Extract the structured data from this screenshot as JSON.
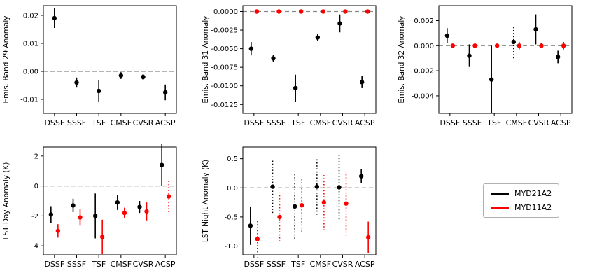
{
  "figure": {
    "background": "#ffffff"
  },
  "legend": {
    "items": [
      {
        "label": "MYD21A2",
        "color": "#000000"
      },
      {
        "label": "MYD11A2",
        "color": "#ff0000"
      }
    ]
  },
  "chart_data": [
    {
      "id": "emis-band-29",
      "type": "scatter",
      "ylabel": "Emis. Band 29 Anomaly",
      "categories": [
        "DSSF",
        "SSSF",
        "TSF",
        "CMSF",
        "CVSR",
        "ACSP"
      ],
      "ylim": [
        -0.015,
        0.0235
      ],
      "yticks": [
        {
          "v": -0.01,
          "label": "-0.01"
        },
        {
          "v": 0.0,
          "label": "0.00"
        },
        {
          "v": 0.01,
          "label": "0.01"
        },
        {
          "v": 0.02,
          "label": "0.02"
        }
      ],
      "zero_line": true,
      "series": [
        {
          "name": "MYD21A2",
          "color": "#000000",
          "dx": 0,
          "points": [
            {
              "y": 0.019,
              "err": 0.0035,
              "style": "solid"
            },
            {
              "y": -0.004,
              "err": 0.0018,
              "style": "solid"
            },
            {
              "y": -0.007,
              "err": 0.004,
              "style": "solid"
            },
            {
              "y": -0.0015,
              "err": 0.0012,
              "style": "solid"
            },
            {
              "y": -0.002,
              "err": 0.001,
              "style": "solid"
            },
            {
              "y": -0.0075,
              "err": 0.0028,
              "style": "solid"
            }
          ]
        }
      ]
    },
    {
      "id": "emis-band-31",
      "type": "scatter",
      "ylabel": "Emis. Band 31 Anomaly",
      "categories": [
        "DSSF",
        "SSSF",
        "TSF",
        "CMSF",
        "CVSR",
        "ACSP"
      ],
      "ylim": [
        -0.0137,
        0.0008
      ],
      "yticks": [
        {
          "v": 0.0,
          "label": "0.0000"
        },
        {
          "v": -0.0025,
          "label": "-0.0025"
        },
        {
          "v": -0.005,
          "label": "-0.0050"
        },
        {
          "v": -0.0075,
          "label": "-0.0075"
        },
        {
          "v": -0.01,
          "label": "-0.0100"
        },
        {
          "v": -0.0125,
          "label": "-0.0125"
        }
      ],
      "zero_line": true,
      "series": [
        {
          "name": "MYD21A2",
          "color": "#000000",
          "dx": -4,
          "points": [
            {
              "y": -0.005,
              "err": 0.0009,
              "style": "solid"
            },
            {
              "y": -0.0063,
              "err": 0.0005,
              "style": "solid"
            },
            {
              "y": -0.0103,
              "err": 0.0018,
              "style": "solid"
            },
            {
              "y": -0.0035,
              "err": 0.0005,
              "style": "solid"
            },
            {
              "y": -0.0016,
              "err": 0.0012,
              "style": "solid"
            },
            {
              "y": -0.0095,
              "err": 0.0008,
              "style": "solid"
            }
          ]
        },
        {
          "name": "MYD11A2",
          "color": "#ff0000",
          "dx": 4,
          "points": [
            {
              "y": 0.0,
              "err": 0.0001,
              "style": "solid"
            },
            {
              "y": 0.0,
              "err": 0.0001,
              "style": "solid"
            },
            {
              "y": 0.0,
              "err": 0.0001,
              "style": "solid"
            },
            {
              "y": 0.0,
              "err": 0.0001,
              "style": "solid"
            },
            {
              "y": 0.0,
              "err": 0.0002,
              "style": "solid"
            },
            {
              "y": 0.0,
              "err": 0.0002,
              "style": "solid"
            }
          ]
        }
      ]
    },
    {
      "id": "emis-band-32",
      "type": "scatter",
      "ylabel": "Emis. Band 32 Anomaly",
      "categories": [
        "DSSF",
        "SSSF",
        "TSF",
        "CMSF",
        "CVSR",
        "ACSP"
      ],
      "ylim": [
        -0.0054,
        0.0032
      ],
      "yticks": [
        {
          "v": 0.002,
          "label": "0.002"
        },
        {
          "v": 0.0,
          "label": "0.000"
        },
        {
          "v": -0.002,
          "label": "-0.002"
        },
        {
          "v": -0.004,
          "label": "-0.004"
        }
      ],
      "zero_line": true,
      "series": [
        {
          "name": "MYD21A2",
          "color": "#000000",
          "dx": -4,
          "points": [
            {
              "y": 0.0008,
              "err": 0.0006,
              "style": "solid"
            },
            {
              "y": -0.0008,
              "err": 0.0009,
              "style": "solid"
            },
            {
              "y": -0.0027,
              "err": 0.0027,
              "style": "solid"
            },
            {
              "y": 0.0003,
              "err": 0.0013,
              "style": "dotted"
            },
            {
              "y": 0.0013,
              "err": 0.0012,
              "style": "solid"
            },
            {
              "y": -0.0009,
              "err": 0.0005,
              "style": "solid"
            }
          ]
        },
        {
          "name": "MYD11A2",
          "color": "#ff0000",
          "dx": 4,
          "points": [
            {
              "y": 0.0,
              "err": 0.0001,
              "style": "solid"
            },
            {
              "y": 0.0,
              "err": 0.0002,
              "style": "solid"
            },
            {
              "y": 0.0,
              "err": 0.0001,
              "style": "solid"
            },
            {
              "y": 0.0,
              "err": 0.0003,
              "style": "solid"
            },
            {
              "y": 0.0,
              "err": 0.0002,
              "style": "solid"
            },
            {
              "y": 0.0,
              "err": 0.0003,
              "style": "solid"
            }
          ]
        }
      ]
    },
    {
      "id": "lst-day",
      "type": "scatter",
      "ylabel": "LST Day Anomaly (K)",
      "categories": [
        "DSSF",
        "SSSF",
        "TSF",
        "CMSF",
        "CVSR",
        "ACSP"
      ],
      "ylim": [
        -4.6,
        2.6
      ],
      "yticks": [
        {
          "v": 2,
          "label": "2"
        },
        {
          "v": 0,
          "label": "0"
        },
        {
          "v": -2,
          "label": "-2"
        },
        {
          "v": -4,
          "label": "-4"
        }
      ],
      "zero_line": true,
      "series": [
        {
          "name": "MYD21A2",
          "color": "#000000",
          "dx": -5,
          "points": [
            {
              "y": -1.9,
              "err": 0.55,
              "style": "solid"
            },
            {
              "y": -1.3,
              "err": 0.45,
              "style": "solid"
            },
            {
              "y": -2.0,
              "err": 1.5,
              "style": "solid"
            },
            {
              "y": -1.1,
              "err": 0.5,
              "style": "solid"
            },
            {
              "y": -1.4,
              "err": 0.4,
              "style": "solid"
            },
            {
              "y": 1.4,
              "err": 1.4,
              "style": "solid"
            }
          ]
        },
        {
          "name": "MYD11A2",
          "color": "#ff0000",
          "dx": 5,
          "points": [
            {
              "y": -3.0,
              "err": 0.45,
              "style": "solid"
            },
            {
              "y": -2.1,
              "err": 0.55,
              "style": "solid"
            },
            {
              "y": -3.4,
              "err": 1.15,
              "style": "solid"
            },
            {
              "y": -1.8,
              "err": 0.35,
              "style": "solid"
            },
            {
              "y": -1.7,
              "err": 0.6,
              "style": "solid"
            },
            {
              "y": -0.7,
              "err": 1.05,
              "style": "dotted"
            }
          ]
        }
      ]
    },
    {
      "id": "lst-night",
      "type": "scatter",
      "ylabel": "LST Night Anomaly (K)",
      "categories": [
        "DSSF",
        "SSSF",
        "TSF",
        "CMSF",
        "CVSR",
        "ACSP"
      ],
      "ylim": [
        -1.15,
        0.7
      ],
      "yticks": [
        {
          "v": 0.5,
          "label": "0.5"
        },
        {
          "v": 0.0,
          "label": "0.0"
        },
        {
          "v": -0.5,
          "label": "-0.5"
        },
        {
          "v": -1.0,
          "label": "-1.0"
        }
      ],
      "zero_line": true,
      "series": [
        {
          "name": "MYD21A2",
          "color": "#000000",
          "dx": -5,
          "points": [
            {
              "y": -0.65,
              "err": 0.33,
              "style": "solid"
            },
            {
              "y": 0.02,
              "err": 0.45,
              "style": "dotted"
            },
            {
              "y": -0.32,
              "err": 0.55,
              "style": "dotted"
            },
            {
              "y": 0.02,
              "err": 0.48,
              "style": "dotted"
            },
            {
              "y": 0.01,
              "err": 0.55,
              "style": "dotted"
            },
            {
              "y": 0.2,
              "err": 0.12,
              "style": "solid"
            }
          ]
        },
        {
          "name": "MYD11A2",
          "color": "#ff0000",
          "dx": 5,
          "points": [
            {
              "y": -0.88,
              "err": 0.33,
              "style": "dotted"
            },
            {
              "y": -0.5,
              "err": 0.42,
              "style": "dotted"
            },
            {
              "y": -0.3,
              "err": 0.45,
              "style": "dotted"
            },
            {
              "y": -0.25,
              "err": 0.48,
              "style": "dotted"
            },
            {
              "y": -0.27,
              "err": 0.55,
              "style": "dotted"
            },
            {
              "y": -0.85,
              "err": 0.27,
              "style": "solid"
            }
          ]
        }
      ]
    }
  ]
}
